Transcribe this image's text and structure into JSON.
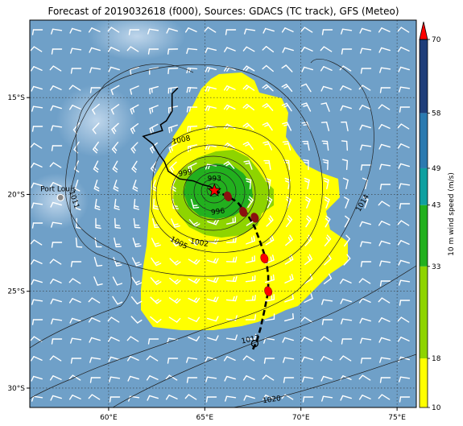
{
  "title": "Forecast of 2019032618 (f000), Sources: GDACS (TC track), GFS (Meteo)",
  "map": {
    "lon_range": [
      55.9,
      76.0
    ],
    "lat_range": [
      -31.0,
      -11.0
    ],
    "lon_ticks": [
      {
        "value": 60,
        "label": "60°E"
      },
      {
        "value": 65,
        "label": "65°E"
      },
      {
        "value": 70,
        "label": "70°E"
      },
      {
        "value": 75,
        "label": "75°E"
      }
    ],
    "lat_ticks": [
      {
        "value": -15,
        "label": "15°S"
      },
      {
        "value": -20,
        "label": "20°S"
      },
      {
        "value": -25,
        "label": "25°S"
      },
      {
        "value": -30,
        "label": "30°S"
      }
    ],
    "ocean_color": "#6fa0c8",
    "place_label": "Port Louis",
    "place_position": [
      57.5,
      -20.16
    ],
    "storm_center": [
      65.5,
      -19.8
    ],
    "wind_symbol": "wind-barb",
    "isobar_labels": [
      {
        "text": "1008",
        "lon": 63.8,
        "lat": -17.3,
        "rot": -12
      },
      {
        "text": "999",
        "lon": 64.0,
        "lat": -19.0,
        "rot": -10
      },
      {
        "text": "993",
        "lon": 65.5,
        "lat": -19.3,
        "rot": 0
      },
      {
        "text": "996",
        "lon": 65.7,
        "lat": -21.0,
        "rot": -8
      },
      {
        "text": "1002",
        "lon": 64.7,
        "lat": -22.6,
        "rot": 10
      },
      {
        "text": "1005",
        "lon": 63.6,
        "lat": -22.6,
        "rot": 28
      },
      {
        "text": "1011",
        "lon": 58.1,
        "lat": -20.3,
        "rot": 72
      },
      {
        "text": "1014",
        "lon": 73.3,
        "lat": -20.5,
        "rot": -60
      },
      {
        "text": "1017",
        "lon": 67.4,
        "lat": -27.6,
        "rot": -12
      },
      {
        "text": "1020",
        "lon": 68.5,
        "lat": -30.7,
        "rot": -8
      }
    ],
    "track_past": [
      [
        63.6,
        -14.5
      ],
      [
        63.3,
        -14.8
      ],
      [
        63.3,
        -15.7
      ],
      [
        63.0,
        -16.2
      ],
      [
        62.7,
        -16.4
      ],
      [
        62.8,
        -16.7
      ],
      [
        61.8,
        -17.0
      ],
      [
        62.3,
        -17.4
      ],
      [
        62.6,
        -17.9
      ],
      [
        62.9,
        -18.3
      ],
      [
        63.1,
        -18.8
      ],
      [
        63.7,
        -19.2
      ],
      [
        64.4,
        -19.3
      ],
      [
        64.9,
        -19.5
      ],
      [
        65.3,
        -19.6
      ],
      [
        65.5,
        -19.8
      ]
    ],
    "track_forecast": [
      [
        65.5,
        -19.8
      ],
      [
        66.2,
        -20.1
      ],
      [
        66.7,
        -20.4
      ],
      [
        67.2,
        -21.0
      ],
      [
        67.6,
        -21.7
      ],
      [
        67.9,
        -22.5
      ],
      [
        68.2,
        -23.4
      ],
      [
        68.3,
        -24.2
      ],
      [
        68.3,
        -25.0
      ],
      [
        68.1,
        -26.0
      ],
      [
        67.9,
        -26.9
      ],
      [
        67.7,
        -27.6
      ],
      [
        67.5,
        -28.0
      ]
    ],
    "forecast_points": [
      [
        66.2,
        -20.1
      ],
      [
        67.0,
        -20.9
      ],
      [
        67.6,
        -21.2
      ],
      [
        68.1,
        -23.3
      ],
      [
        68.3,
        -25.0
      ]
    ],
    "loop_point": [
      67.6,
      -27.7
    ]
  },
  "colorbar": {
    "label": "10 m wind speed (m/s)",
    "ticks": [
      "10",
      "18",
      "33",
      "43",
      "49",
      "58",
      "70"
    ],
    "values": [
      10,
      18,
      33,
      43,
      49,
      58,
      70
    ],
    "colors": [
      "#ffff00",
      "#8ed400",
      "#22b01e",
      "#0fa0a0",
      "#2b7ab0",
      "#1f3e7a"
    ],
    "arrow_color": "#ff0000"
  }
}
